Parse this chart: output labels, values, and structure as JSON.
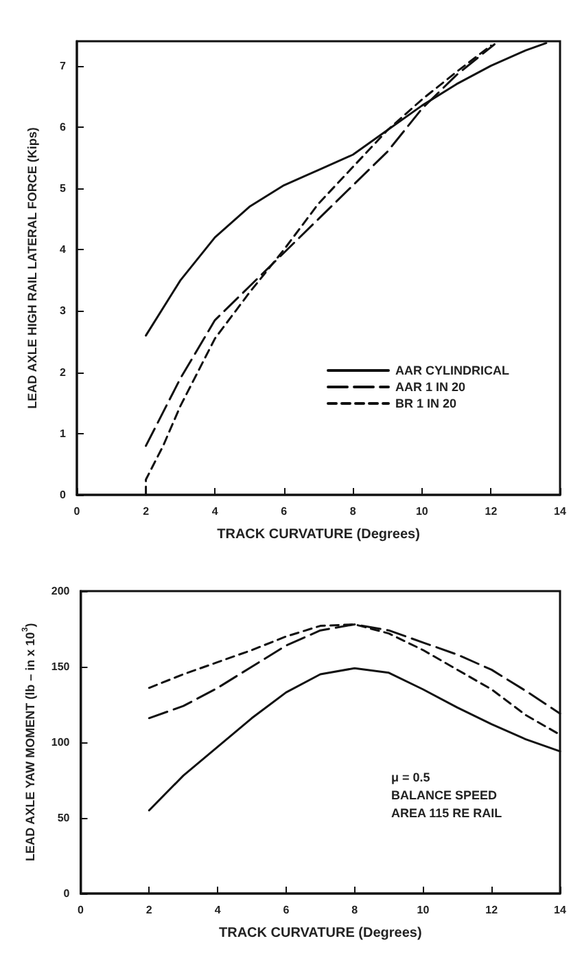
{
  "chart_data": [
    {
      "type": "line",
      "xlabel": "TRACK CURVATURE (Degrees)",
      "ylabel": "LEAD AXLE HIGH RAIL LATERAL FORCE (Kips)",
      "xlim": [
        0,
        14
      ],
      "xticks": [
        0,
        2,
        4,
        6,
        8,
        10,
        12,
        14
      ],
      "ylim": [
        0,
        7.4
      ],
      "yticks": [
        0,
        1,
        2,
        3,
        4,
        5,
        6,
        7
      ],
      "grid": false,
      "legend": "bottom right",
      "marker": "none",
      "series": [
        {
          "name": "AAR CYLINDRICAL",
          "color": "#111111",
          "line_style": "solid",
          "x": [
            2,
            3,
            4,
            5,
            6,
            7,
            8,
            9,
            10,
            11,
            12,
            13,
            13.6
          ],
          "values": [
            2.6,
            3.5,
            4.2,
            4.7,
            5.05,
            5.3,
            5.55,
            5.95,
            6.35,
            6.7,
            7.0,
            7.25,
            7.37
          ]
        },
        {
          "name": "AAR 1 IN 20",
          "color": "#111111",
          "line_style": "longdash",
          "x": [
            2,
            3,
            4,
            5,
            6,
            7,
            8,
            9,
            10,
            11,
            12.1
          ],
          "values": [
            0.8,
            1.9,
            2.85,
            3.4,
            3.95,
            4.5,
            5.05,
            5.6,
            6.3,
            6.85,
            7.35
          ]
        },
        {
          "name": "BR 1 IN 20",
          "color": "#111111",
          "line_style": "dashed",
          "x": [
            2,
            2,
            2.5,
            3,
            4,
            5,
            6,
            7,
            8,
            9,
            10,
            11,
            12
          ],
          "values": [
            0,
            0.25,
            0.8,
            1.45,
            2.55,
            3.3,
            4.0,
            4.75,
            5.35,
            5.95,
            6.45,
            6.9,
            7.33
          ]
        }
      ]
    },
    {
      "type": "line",
      "xlabel": "TRACK CURVATURE (Degrees)",
      "ylabel": "LEAD AXLE YAW MOMENT (lb – in x 10$^{3}$)",
      "xlim": [
        0,
        14
      ],
      "xticks": [
        0,
        2,
        4,
        6,
        8,
        10,
        12,
        14
      ],
      "ylim": [
        0,
        200
      ],
      "yticks": [
        0,
        50,
        100,
        150,
        200
      ],
      "grid": false,
      "legend": false,
      "marker": "none",
      "annotations": [
        "μ = 0.5",
        "BALANCE SPEED",
        "AREA 115 RE RAIL"
      ],
      "series": [
        {
          "color": "#111111",
          "line_style": "solid",
          "x": [
            2,
            3,
            4,
            5,
            6,
            7,
            8,
            9,
            10,
            11,
            12,
            13,
            14
          ],
          "values": [
            55,
            78,
            97,
            116,
            133,
            145,
            149,
            146,
            135,
            123,
            112,
            102,
            94
          ]
        },
        {
          "color": "#111111",
          "line_style": "longdash",
          "x": [
            2,
            3,
            4,
            5,
            6,
            7,
            8,
            9,
            10,
            11,
            12,
            13,
            14
          ],
          "values": [
            116,
            124,
            136,
            150,
            164,
            174,
            178,
            174,
            166,
            158,
            148,
            134,
            119
          ]
        },
        {
          "color": "#111111",
          "line_style": "dashed",
          "x": [
            2,
            3,
            4,
            5,
            6,
            7,
            8,
            9,
            10,
            11,
            12,
            13,
            14
          ],
          "values": [
            136,
            145,
            153,
            161,
            170,
            177,
            178,
            172,
            161,
            148,
            135,
            118,
            105
          ]
        }
      ]
    }
  ]
}
